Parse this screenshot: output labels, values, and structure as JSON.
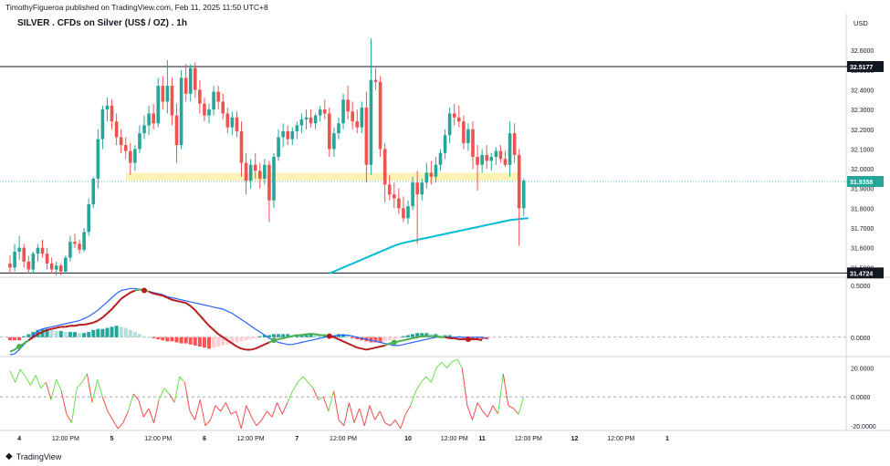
{
  "header": {
    "publisher_line": "TimothyFigueroa published on TradingView.com, Feb 11, 2025 11:50 UTC+8",
    "title": "SILVER . CFDs on Silver (US$ / OZ) . 1h",
    "currency": "USD"
  },
  "footer": {
    "brand": "TradingView"
  },
  "colors": {
    "up": "#26a69a",
    "down": "#ef5350",
    "ma": "#00bcd4",
    "zone": "#fff3b8",
    "macd_fast": "#2962ff",
    "macd_signal_up": "#4caf50",
    "macd_signal_down": "#b71c1c",
    "rsi_up": "#66e04b",
    "rsi_down": "#ef4d4d",
    "price_label_bg": "#26a69a",
    "line_label_bg": "#131722"
  },
  "chart_data": [
    {
      "type": "candlestick",
      "panel": "price",
      "y_axis_ticks": [
        "32.6000",
        "32.5000",
        "32.4000",
        "32.3000",
        "32.2000",
        "32.1000",
        "32.0000",
        "31.9000",
        "31.8000",
        "31.7000",
        "31.6000",
        "31.5000"
      ],
      "ylim": [
        31.46,
        32.67
      ],
      "horizontal_lines": [
        {
          "value": 32.5177,
          "label": "32.5177"
        },
        {
          "value": 31.4724,
          "label": "31.4724"
        }
      ],
      "current_price": {
        "value": 31.9358,
        "label": "31.9358"
      },
      "zone": {
        "low": 31.94,
        "high": 31.98,
        "from_index": 25,
        "to_index": 110
      },
      "ohlc": [
        [
          31.52,
          31.56,
          31.47,
          31.5
        ],
        [
          31.5,
          31.62,
          31.48,
          31.58
        ],
        [
          31.58,
          31.66,
          31.54,
          31.6
        ],
        [
          31.6,
          31.62,
          31.5,
          31.53
        ],
        [
          31.53,
          31.56,
          31.47,
          31.49
        ],
        [
          31.49,
          31.58,
          31.47,
          31.57
        ],
        [
          31.57,
          31.62,
          31.53,
          31.6
        ],
        [
          31.6,
          31.64,
          31.55,
          31.57
        ],
        [
          31.57,
          31.6,
          31.49,
          31.52
        ],
        [
          31.52,
          31.55,
          31.47,
          31.49
        ],
        [
          31.49,
          31.53,
          31.46,
          31.51
        ],
        [
          31.51,
          31.52,
          31.46,
          31.48
        ],
        [
          31.48,
          31.56,
          31.47,
          31.55
        ],
        [
          31.55,
          31.66,
          31.53,
          31.63
        ],
        [
          31.63,
          31.67,
          31.6,
          31.62
        ],
        [
          31.62,
          31.64,
          31.57,
          31.59
        ],
        [
          31.59,
          31.7,
          31.58,
          31.68
        ],
        [
          31.68,
          31.85,
          31.66,
          31.82
        ],
        [
          31.82,
          31.96,
          31.8,
          31.95
        ],
        [
          31.95,
          32.2,
          31.9,
          32.15
        ],
        [
          32.15,
          32.32,
          32.1,
          32.3
        ],
        [
          32.3,
          32.36,
          32.24,
          32.32
        ],
        [
          32.32,
          32.35,
          32.2,
          32.24
        ],
        [
          32.24,
          32.28,
          32.12,
          32.16
        ],
        [
          32.16,
          32.2,
          32.08,
          32.12
        ],
        [
          32.12,
          32.16,
          32.05,
          32.09
        ],
        [
          32.09,
          32.13,
          31.97,
          32.03
        ],
        [
          32.03,
          32.12,
          31.99,
          32.1
        ],
        [
          32.1,
          32.22,
          32.08,
          32.18
        ],
        [
          32.18,
          32.27,
          32.15,
          32.22
        ],
        [
          32.22,
          32.32,
          32.17,
          32.28
        ],
        [
          32.28,
          32.33,
          32.2,
          32.23
        ],
        [
          32.23,
          32.46,
          32.21,
          32.42
        ],
        [
          32.42,
          32.47,
          32.3,
          32.34
        ],
        [
          32.34,
          32.55,
          32.28,
          32.42
        ],
        [
          32.42,
          32.46,
          32.22,
          32.27
        ],
        [
          32.27,
          32.33,
          32.03,
          32.12
        ],
        [
          32.12,
          32.5,
          32.1,
          32.46
        ],
        [
          32.46,
          32.53,
          32.34,
          32.38
        ],
        [
          32.38,
          32.53,
          32.34,
          32.51
        ],
        [
          32.51,
          32.54,
          32.36,
          32.4
        ],
        [
          32.4,
          32.45,
          32.28,
          32.33
        ],
        [
          32.33,
          32.36,
          32.24,
          32.27
        ],
        [
          32.27,
          32.33,
          32.23,
          32.3
        ],
        [
          32.3,
          32.42,
          32.27,
          32.39
        ],
        [
          32.39,
          32.42,
          32.3,
          32.34
        ],
        [
          32.34,
          32.38,
          32.25,
          32.28
        ],
        [
          32.28,
          32.31,
          32.18,
          32.21
        ],
        [
          32.21,
          32.29,
          32.17,
          32.26
        ],
        [
          32.26,
          32.29,
          32.16,
          32.19
        ],
        [
          32.19,
          32.24,
          31.96,
          32.03
        ],
        [
          32.03,
          32.08,
          31.87,
          31.94
        ],
        [
          31.94,
          32.05,
          31.9,
          32.02
        ],
        [
          32.02,
          32.08,
          31.95,
          31.99
        ],
        [
          31.99,
          32.03,
          31.9,
          31.95
        ],
        [
          31.95,
          32.05,
          31.92,
          32.02
        ],
        [
          32.02,
          32.04,
          31.73,
          31.84
        ],
        [
          31.84,
          32.08,
          31.8,
          32.06
        ],
        [
          32.06,
          32.2,
          32.04,
          32.16
        ],
        [
          32.16,
          32.23,
          32.11,
          32.19
        ],
        [
          32.19,
          32.22,
          32.12,
          32.15
        ],
        [
          32.15,
          32.21,
          32.12,
          32.19
        ],
        [
          32.19,
          32.24,
          32.15,
          32.22
        ],
        [
          32.22,
          32.28,
          32.18,
          32.25
        ],
        [
          32.25,
          32.3,
          32.2,
          32.26
        ],
        [
          32.26,
          32.3,
          32.21,
          32.23
        ],
        [
          32.23,
          32.28,
          32.2,
          32.27
        ],
        [
          32.27,
          32.32,
          32.24,
          32.3
        ],
        [
          32.3,
          32.35,
          32.25,
          32.28
        ],
        [
          32.28,
          32.31,
          32.06,
          32.1
        ],
        [
          32.1,
          32.21,
          32.06,
          32.18
        ],
        [
          32.18,
          32.26,
          32.15,
          32.23
        ],
        [
          32.23,
          32.38,
          32.2,
          32.35
        ],
        [
          32.35,
          32.42,
          32.25,
          32.29
        ],
        [
          32.29,
          32.34,
          32.2,
          32.24
        ],
        [
          32.24,
          32.3,
          32.18,
          32.21
        ],
        [
          32.21,
          32.34,
          32.18,
          32.31
        ],
        [
          32.31,
          32.39,
          31.93,
          32.02
        ],
        [
          32.02,
          32.66,
          31.97,
          32.45
        ],
        [
          32.45,
          32.51,
          32.4,
          32.44
        ],
        [
          32.44,
          32.47,
          32.06,
          32.1
        ],
        [
          32.1,
          32.13,
          31.83,
          31.92
        ],
        [
          31.92,
          31.97,
          31.84,
          31.87
        ],
        [
          31.87,
          31.93,
          31.8,
          31.85
        ],
        [
          31.85,
          31.9,
          31.77,
          31.8
        ],
        [
          31.8,
          31.86,
          31.73,
          31.75
        ],
        [
          31.75,
          31.84,
          31.72,
          31.81
        ],
        [
          31.81,
          31.96,
          31.79,
          31.93
        ],
        [
          31.93,
          31.99,
          31.62,
          31.87
        ],
        [
          31.87,
          31.95,
          31.84,
          31.93
        ],
        [
          31.93,
          32.03,
          31.9,
          31.98
        ],
        [
          31.98,
          32.04,
          31.92,
          31.96
        ],
        [
          31.96,
          32.06,
          31.93,
          32.02
        ],
        [
          32.02,
          32.1,
          31.99,
          32.08
        ],
        [
          32.08,
          32.2,
          32.05,
          32.17
        ],
        [
          32.17,
          32.31,
          32.13,
          32.28
        ],
        [
          32.28,
          32.33,
          32.22,
          32.26
        ],
        [
          32.26,
          32.32,
          32.21,
          32.24
        ],
        [
          32.24,
          32.27,
          32.1,
          32.13
        ],
        [
          32.13,
          32.23,
          32.09,
          32.2
        ],
        [
          32.2,
          32.24,
          32.0,
          32.06
        ],
        [
          32.06,
          32.12,
          31.89,
          32.02
        ],
        [
          32.02,
          32.1,
          31.98,
          32.07
        ],
        [
          32.07,
          32.12,
          32.0,
          32.04
        ],
        [
          32.04,
          32.08,
          31.99,
          32.06
        ],
        [
          32.06,
          32.11,
          32.02,
          32.09
        ],
        [
          32.09,
          32.12,
          32.03,
          32.05
        ],
        [
          32.05,
          32.09,
          32.01,
          32.02
        ],
        [
          32.02,
          32.24,
          31.96,
          32.18
        ],
        [
          32.18,
          32.23,
          32.03,
          32.07
        ],
        [
          32.07,
          32.1,
          31.61,
          31.8
        ],
        [
          31.8,
          31.95,
          31.76,
          31.94
        ]
      ],
      "moving_average": {
        "start_index": 69,
        "values": [
          31.47,
          31.48,
          31.49,
          31.5,
          31.51,
          31.52,
          31.53,
          31.54,
          31.55,
          31.56,
          31.57,
          31.58,
          31.59,
          31.6,
          31.61,
          31.618,
          31.625,
          31.63,
          31.635,
          31.64,
          31.645,
          31.65,
          31.655,
          31.66,
          31.665,
          31.67,
          31.675,
          31.68,
          31.685,
          31.69,
          31.695,
          31.7,
          31.705,
          31.71,
          31.715,
          31.72,
          31.725,
          31.73,
          31.735,
          31.74,
          31.743,
          31.745,
          31.748,
          31.75
        ]
      },
      "x_tick_labels": [
        {
          "label": "4",
          "index": 2
        },
        {
          "label": "12:00 PM",
          "index": 12
        },
        {
          "label": "5",
          "index": 22
        },
        {
          "label": "12:00 PM",
          "index": 32
        },
        {
          "label": "6",
          "index": 42
        },
        {
          "label": "12:00 PM",
          "index": 52
        },
        {
          "label": "7",
          "index": 62
        },
        {
          "label": "12:00 PM",
          "index": 72
        },
        {
          "label": "10",
          "index": 86
        },
        {
          "label": "12:00 PM",
          "index": 96
        },
        {
          "label": "11",
          "index": 102
        },
        {
          "label": "12:00 PM",
          "index": 112
        },
        {
          "label": "12",
          "index": 122
        },
        {
          "label": "12:00 PM",
          "index": 132
        },
        {
          "label": "1",
          "index": 142
        }
      ]
    },
    {
      "type": "macd",
      "panel": "macd",
      "y_axis_ticks": [
        "0.5000",
        "0.0000"
      ],
      "ylim": [
        -0.16,
        0.56
      ],
      "fast": [
        -0.17,
        -0.16,
        -0.12,
        -0.07,
        -0.03,
        0.02,
        0.06,
        0.08,
        0.09,
        0.1,
        0.11,
        0.12,
        0.13,
        0.14,
        0.15,
        0.16,
        0.18,
        0.2,
        0.23,
        0.26,
        0.3,
        0.34,
        0.38,
        0.42,
        0.45,
        0.46,
        0.47,
        0.47,
        0.46,
        0.45,
        0.44,
        0.43,
        0.42,
        0.41,
        0.39,
        0.38,
        0.37,
        0.36,
        0.35,
        0.34,
        0.33,
        0.32,
        0.31,
        0.3,
        0.29,
        0.28,
        0.27,
        0.25,
        0.23,
        0.2,
        0.17,
        0.14,
        0.11,
        0.08,
        0.05,
        0.02,
        -0.01,
        -0.03,
        -0.05,
        -0.06,
        -0.07,
        -0.07,
        -0.06,
        -0.05,
        -0.04,
        -0.03,
        -0.02,
        -0.01,
        0.0,
        0.01,
        0.01,
        0.02,
        0.02,
        0.02,
        0.01,
        0.0,
        -0.01,
        -0.02,
        -0.03,
        -0.04,
        -0.05,
        -0.06,
        -0.07,
        -0.08,
        -0.08,
        -0.07,
        -0.06,
        -0.05,
        -0.04,
        -0.03,
        -0.02,
        -0.01,
        0.0,
        0.0,
        0.0,
        0.0,
        0.0,
        0.0,
        0.0,
        0.0,
        0.0,
        0.0,
        0.0,
        -0.01
      ],
      "signal": [
        -0.14,
        -0.12,
        -0.09,
        -0.06,
        -0.03,
        0.0,
        0.03,
        0.05,
        0.07,
        0.08,
        0.09,
        0.1,
        0.1,
        0.11,
        0.11,
        0.12,
        0.12,
        0.13,
        0.14,
        0.16,
        0.19,
        0.23,
        0.27,
        0.32,
        0.37,
        0.4,
        0.43,
        0.45,
        0.46,
        0.45,
        0.44,
        0.42,
        0.41,
        0.4,
        0.38,
        0.36,
        0.35,
        0.34,
        0.33,
        0.3,
        0.26,
        0.21,
        0.16,
        0.11,
        0.07,
        0.03,
        0.0,
        -0.03,
        -0.06,
        -0.09,
        -0.11,
        -0.12,
        -0.12,
        -0.11,
        -0.09,
        -0.07,
        -0.05,
        -0.03,
        -0.02,
        -0.01,
        0.0,
        0.01,
        0.02,
        0.02,
        0.03,
        0.03,
        0.03,
        0.02,
        0.02,
        0.01,
        0.0,
        -0.02,
        -0.04,
        -0.06,
        -0.08,
        -0.1,
        -0.11,
        -0.12,
        -0.11,
        -0.1,
        -0.09,
        -0.08,
        -0.06,
        -0.05,
        -0.04,
        -0.03,
        -0.02,
        -0.01,
        0.0,
        0.01,
        0.01,
        0.01,
        0.01,
        0.0,
        0.0,
        -0.01,
        -0.01,
        -0.02,
        -0.02,
        -0.02,
        -0.02,
        -0.02,
        -0.03
      ],
      "histogram": [
        -0.03,
        -0.03,
        -0.03,
        0.01,
        0.03,
        0.05,
        0.07,
        0.08,
        0.08,
        0.07,
        0.06,
        0.06,
        0.05,
        0.05,
        0.05,
        0.04,
        0.04,
        0.05,
        0.07,
        0.08,
        0.08,
        0.09,
        0.1,
        0.11,
        0.1,
        0.09,
        0.07,
        0.05,
        0.03,
        0.01,
        0.0,
        -0.01,
        -0.02,
        -0.03,
        -0.04,
        -0.04,
        -0.05,
        -0.06,
        -0.06,
        -0.07,
        -0.08,
        -0.09,
        -0.1,
        -0.11,
        -0.1,
        -0.09,
        -0.08,
        -0.07,
        -0.06,
        -0.05,
        -0.04,
        -0.03,
        -0.02,
        -0.01,
        0.01,
        0.02,
        0.02,
        0.03,
        0.03,
        0.03,
        0.03,
        0.02,
        0.02,
        0.03,
        0.03,
        0.04,
        0.03,
        0.02,
        0.02,
        0.01,
        0.02,
        0.03,
        0.03,
        0.02,
        -0.01,
        -0.02,
        -0.03,
        -0.04,
        -0.05,
        -0.05,
        -0.05,
        -0.04,
        -0.03,
        -0.02,
        -0.01,
        0.01,
        0.02,
        0.03,
        0.04,
        0.04,
        0.04,
        0.03,
        0.03,
        0.02,
        0.02,
        0.02,
        0.01,
        0.01,
        -0.01,
        -0.01,
        -0.02,
        -0.02,
        -0.02,
        -0.02
      ],
      "markers": [
        {
          "index": 2,
          "line": "up"
        },
        {
          "index": 29,
          "line": "down"
        },
        {
          "index": 57,
          "line": "up"
        },
        {
          "index": 69,
          "line": "down"
        },
        {
          "index": 83,
          "line": "up"
        },
        {
          "index": 99,
          "line": "down"
        }
      ]
    },
    {
      "type": "oscillator",
      "panel": "rsi",
      "y_axis_ticks": [
        "20.0000",
        "0.0000",
        "-20.0000"
      ],
      "ylim": [
        -22,
        26
      ],
      "values": [
        18,
        10,
        19,
        14,
        8,
        15,
        6,
        10,
        -2,
        12,
        4,
        -12,
        -18,
        6,
        10,
        16,
        -4,
        12,
        0,
        -10,
        -16,
        -22,
        -18,
        -10,
        2,
        -2,
        -14,
        -8,
        -18,
        -2,
        6,
        2,
        -4,
        14,
        10,
        -10,
        -16,
        -2,
        -20,
        -16,
        -6,
        -10,
        -4,
        -12,
        -10,
        -22,
        -6,
        -14,
        -20,
        -16,
        -10,
        -14,
        -4,
        -12,
        -4,
        4,
        10,
        14,
        10,
        6,
        -2,
        0,
        -10,
        4,
        -16,
        -20,
        -4,
        -18,
        -8,
        -20,
        -6,
        -16,
        -10,
        -18,
        -20,
        -16,
        -22,
        -12,
        -6,
        4,
        10,
        14,
        10,
        20,
        24,
        20,
        24,
        26,
        20,
        -6,
        -16,
        -4,
        -10,
        -14,
        -6,
        -12,
        16,
        -6,
        -8,
        -12,
        0
      ],
      "zero_label": "0.0000"
    }
  ]
}
